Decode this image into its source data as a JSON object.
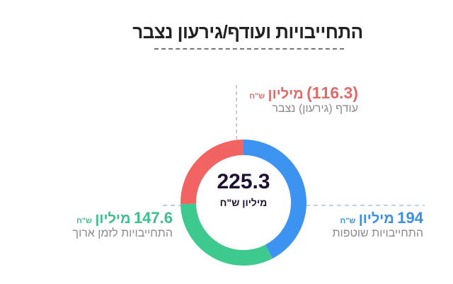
{
  "chart_data": {
    "type": "pie",
    "variant": "donut",
    "title": "התחייבויות ועודף/גירעון נצבר",
    "center_value": "225.3",
    "center_unit": "מיליון ש\"ח",
    "slices": [
      {
        "name": "התחייבויות שוטפות",
        "value": 194,
        "value_label": "194",
        "unit": "מיליון",
        "currency": "ש\"ח",
        "color": "#3d94f0",
        "text_color": "#3b8ee0"
      },
      {
        "name": "התחייבויות לזמן ארוך",
        "value": 147.6,
        "value_label": "147.6",
        "unit": "מיליון",
        "currency": "ש\"ח",
        "color": "#3ec98f",
        "text_color": "#3cbf8a"
      },
      {
        "name": "עודף (גירעון) נצבר",
        "value": 116.3,
        "value_label": "(116.3)",
        "unit": "מיליון",
        "currency": "ש\"ח",
        "color": "#f26464",
        "text_color": "#e06b6b"
      }
    ]
  }
}
